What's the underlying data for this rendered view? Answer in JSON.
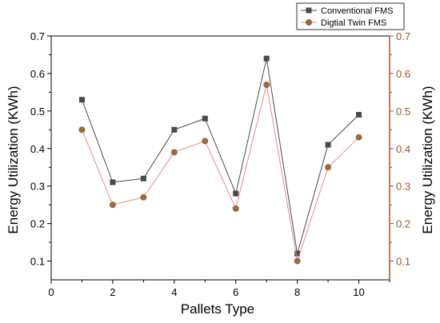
{
  "chart_data": {
    "type": "line",
    "x": [
      1,
      2,
      3,
      4,
      5,
      6,
      7,
      8,
      9,
      10
    ],
    "series": [
      {
        "name": "Conventional FMS",
        "values": [
          0.53,
          0.31,
          0.32,
          0.45,
          0.48,
          0.28,
          0.64,
          0.12,
          0.41,
          0.49
        ],
        "color": "#4a4a4a",
        "marker": "square"
      },
      {
        "name": "Digtial Twin FMS",
        "values": [
          0.45,
          0.25,
          0.27,
          0.39,
          0.42,
          0.24,
          0.57,
          0.1,
          0.35,
          0.43
        ],
        "color": "#9b6a3c",
        "marker": "circle",
        "line_color": "#e98a8a"
      }
    ],
    "xlabel": "Pallets Type",
    "ylabel_left": "Energy Utilization (KWh)",
    "ylabel_right": "Energy Utilization (KWh)",
    "xlim": [
      0,
      11
    ],
    "ylim": [
      0.05,
      0.7
    ],
    "xticks": [
      0,
      2,
      4,
      6,
      8,
      10
    ],
    "xtick_labels": [
      "0",
      "2",
      "4",
      "6",
      "8",
      "10"
    ],
    "yticks": [
      0.1,
      0.2,
      0.3,
      0.4,
      0.5,
      0.6,
      0.7
    ],
    "ytick_labels": [
      "0.1",
      "0.2",
      "0.3",
      "0.4",
      "0.5",
      "0.6",
      "0.7"
    ],
    "right_axis_color": "#a0522d",
    "legend_position": "top-right",
    "grid": false
  }
}
